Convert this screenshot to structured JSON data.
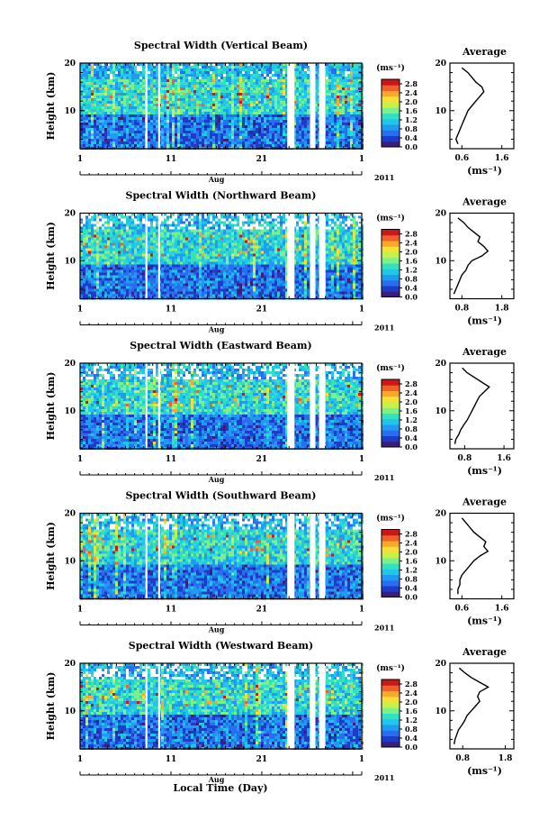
{
  "figure": {
    "xlabel": "Local Time (Day)",
    "month_label": "Aug",
    "year_label": "2011",
    "colors": {
      "colormap": [
        "#3a1e7a",
        "#1e3cc8",
        "#2a6ef0",
        "#1f9cf0",
        "#22c6e8",
        "#35e0c0",
        "#7ef08a",
        "#c8f04a",
        "#f5e03a",
        "#f8a82a",
        "#f0602a",
        "#c81818"
      ],
      "gap": "#ffffff",
      "axis": "#000000"
    }
  },
  "chart_data": [
    {
      "type": "heatmap",
      "title": "Spectral Width (Vertical Beam)",
      "ylabel": "Height (km)",
      "x_ticks": [
        "1",
        "11",
        "21",
        "1"
      ],
      "x_range_days": [
        1,
        32
      ],
      "y_range_km": [
        2,
        20
      ],
      "y_ticks": [
        "20",
        "10"
      ],
      "colorbar": {
        "unit": "(ms⁻¹)",
        "ticks": [
          "2.8",
          "2.4",
          "2.0",
          "1.6",
          "1.2",
          "0.8",
          "0.4",
          "0.0"
        ],
        "range": [
          0.0,
          3.0
        ]
      },
      "data_gaps_days": [
        [
          8.2,
          8.4
        ],
        [
          9.6,
          9.8
        ],
        [
          23.8,
          24.6
        ],
        [
          26.3,
          26.9
        ],
        [
          27.3,
          28.0
        ]
      ],
      "average_profile": {
        "title": "Average",
        "x_ticks": [
          "0.6",
          "1.6"
        ],
        "y_ticks": [
          "20",
          "10"
        ],
        "xlabel": "(ms⁻¹)",
        "xlim": [
          0.3,
          1.9
        ],
        "ylim": [
          2,
          20
        ],
        "heights_km": [
          3,
          4,
          5,
          6,
          7,
          8,
          9,
          10,
          11,
          12,
          13,
          14,
          15,
          16,
          17,
          18,
          19
        ],
        "values": [
          0.5,
          0.45,
          0.5,
          0.55,
          0.6,
          0.65,
          0.7,
          0.75,
          0.85,
          0.95,
          1.05,
          1.15,
          1.1,
          0.95,
          0.85,
          0.75,
          0.6
        ]
      }
    },
    {
      "type": "heatmap",
      "title": "Spectral Width (Northward Beam)",
      "ylabel": "Height (km)",
      "x_ticks": [
        "1",
        "11",
        "21",
        "1"
      ],
      "x_range_days": [
        1,
        32
      ],
      "y_range_km": [
        2,
        20
      ],
      "y_ticks": [
        "20",
        "10"
      ],
      "colorbar": {
        "unit": "(ms⁻¹)",
        "ticks": [
          "2.8",
          "2.4",
          "2.0",
          "1.6",
          "1.2",
          "0.8",
          "0.4",
          "0.0"
        ],
        "range": [
          0.0,
          3.0
        ]
      },
      "data_gaps_days": [
        [
          8.2,
          8.4
        ],
        [
          9.6,
          9.8
        ],
        [
          23.8,
          24.6
        ],
        [
          26.3,
          26.9
        ],
        [
          27.3,
          28.0
        ]
      ],
      "average_profile": {
        "title": "Average",
        "x_ticks": [
          "0.8",
          "1.8"
        ],
        "y_ticks": [
          "20",
          "10"
        ],
        "xlabel": "(ms⁻¹)",
        "xlim": [
          0.5,
          2.1
        ],
        "ylim": [
          2,
          20
        ],
        "heights_km": [
          3,
          4,
          5,
          6,
          7,
          8,
          9,
          10,
          11,
          12,
          13,
          14,
          15,
          16,
          17,
          18,
          19
        ],
        "values": [
          0.6,
          0.65,
          0.7,
          0.75,
          0.8,
          0.9,
          0.95,
          1.05,
          1.3,
          1.45,
          1.35,
          1.2,
          1.25,
          1.1,
          0.95,
          0.85,
          0.7
        ]
      }
    },
    {
      "type": "heatmap",
      "title": "Spectral Width (Eastward Beam)",
      "ylabel": "Height (km)",
      "x_ticks": [
        "1",
        "11",
        "21",
        "1"
      ],
      "x_range_days": [
        1,
        32
      ],
      "y_range_km": [
        2,
        20
      ],
      "y_ticks": [
        "20",
        "10"
      ],
      "colorbar": {
        "unit": "(ms⁻¹)",
        "ticks": [
          "2.8",
          "2.4",
          "2.0",
          "1.6",
          "1.2",
          "0.8",
          "0.4",
          "0.0"
        ],
        "range": [
          0.0,
          3.0
        ]
      },
      "data_gaps_days": [
        [
          8.2,
          8.4
        ],
        [
          9.6,
          9.8
        ],
        [
          23.8,
          24.6
        ],
        [
          26.3,
          26.9
        ],
        [
          27.3,
          28.0
        ]
      ],
      "average_profile": {
        "title": "Average",
        "x_ticks": [
          "0.8",
          "1.6"
        ],
        "y_ticks": [
          "20",
          "10"
        ],
        "xlabel": "(ms⁻¹)",
        "xlim": [
          0.5,
          1.8
        ],
        "ylim": [
          2,
          20
        ],
        "heights_km": [
          3,
          4,
          5,
          6,
          7,
          8,
          9,
          10,
          11,
          12,
          13,
          14,
          15,
          16,
          17,
          18,
          19
        ],
        "values": [
          0.6,
          0.62,
          0.68,
          0.72,
          0.78,
          0.85,
          0.9,
          0.95,
          1.0,
          1.05,
          1.1,
          1.2,
          1.3,
          1.15,
          1.0,
          0.85,
          0.75
        ]
      }
    },
    {
      "type": "heatmap",
      "title": "Spectral Width (Southward Beam)",
      "ylabel": "Height (km)",
      "x_ticks": [
        "1",
        "11",
        "21",
        "1"
      ],
      "x_range_days": [
        1,
        32
      ],
      "y_range_km": [
        2,
        20
      ],
      "y_ticks": [
        "20",
        "10"
      ],
      "colorbar": {
        "unit": "(ms⁻¹)",
        "ticks": [
          "2.8",
          "2.4",
          "2.0",
          "1.6",
          "1.2",
          "0.8",
          "0.4",
          "0.0"
        ],
        "range": [
          0.0,
          3.0
        ]
      },
      "data_gaps_days": [
        [
          8.2,
          8.4
        ],
        [
          9.6,
          9.8
        ],
        [
          23.8,
          24.6
        ],
        [
          26.3,
          26.9
        ],
        [
          27.3,
          28.0
        ]
      ],
      "average_profile": {
        "title": "Average",
        "x_ticks": [
          "0.6",
          "1.6"
        ],
        "y_ticks": [
          "20",
          "10"
        ],
        "xlabel": "(ms⁻¹)",
        "xlim": [
          0.3,
          1.9
        ],
        "ylim": [
          2,
          20
        ],
        "heights_km": [
          3,
          4,
          5,
          6,
          7,
          8,
          9,
          10,
          11,
          12,
          13,
          14,
          15,
          16,
          17,
          18,
          19
        ],
        "values": [
          0.5,
          0.5,
          0.55,
          0.55,
          0.6,
          0.7,
          0.8,
          0.9,
          1.05,
          1.25,
          1.15,
          1.2,
          1.05,
          0.9,
          0.8,
          0.7,
          0.6
        ]
      }
    },
    {
      "type": "heatmap",
      "title": "Spectral Width (Westward Beam)",
      "ylabel": "Height (km)",
      "x_ticks": [
        "1",
        "11",
        "21",
        "1"
      ],
      "x_range_days": [
        1,
        32
      ],
      "y_range_km": [
        2,
        20
      ],
      "y_ticks": [
        "20",
        "10"
      ],
      "colorbar": {
        "unit": "(ms⁻¹)",
        "ticks": [
          "2.8",
          "2.4",
          "2.0",
          "1.6",
          "1.2",
          "0.8",
          "0.4",
          "0.0"
        ],
        "range": [
          0.0,
          3.0
        ]
      },
      "data_gaps_days": [
        [
          8.2,
          8.4
        ],
        [
          9.6,
          9.8
        ],
        [
          23.8,
          24.6
        ],
        [
          26.3,
          26.9
        ],
        [
          27.3,
          28.0
        ]
      ],
      "average_profile": {
        "title": "Average",
        "x_ticks": [
          "0.8",
          "1.8"
        ],
        "y_ticks": [
          "20",
          "10"
        ],
        "xlabel": "(ms⁻¹)",
        "xlim": [
          0.5,
          2.0
        ],
        "ylim": [
          2,
          20
        ],
        "heights_km": [
          3,
          4,
          5,
          6,
          7,
          8,
          9,
          10,
          11,
          12,
          13,
          14,
          15,
          16,
          17,
          18,
          19
        ],
        "values": [
          0.6,
          0.62,
          0.66,
          0.7,
          0.78,
          0.85,
          0.9,
          1.0,
          1.1,
          1.2,
          1.15,
          1.2,
          1.4,
          1.2,
          1.0,
          0.85,
          0.72
        ]
      }
    }
  ]
}
